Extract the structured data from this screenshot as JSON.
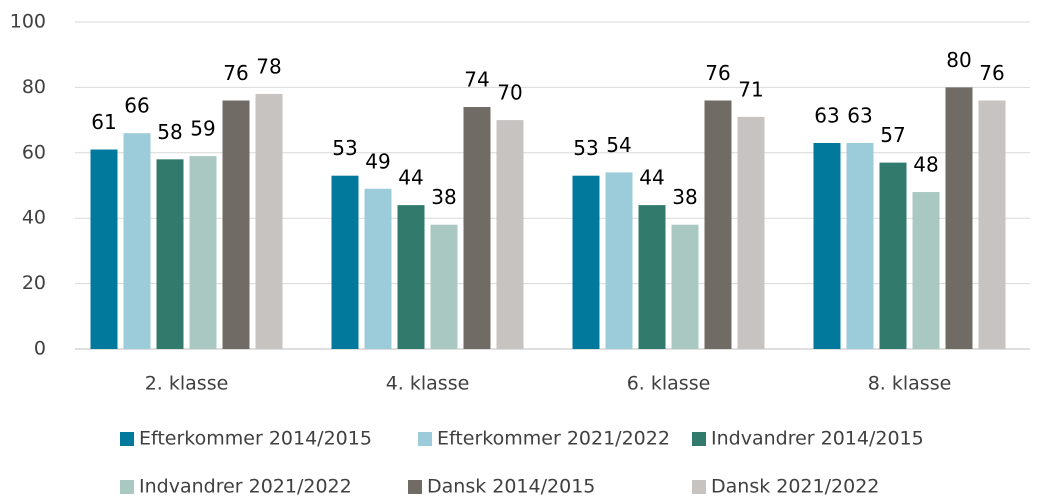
{
  "chart_data": {
    "type": "bar",
    "categories": [
      "2. klasse",
      "4. klasse",
      "6. klasse",
      "8. klasse"
    ],
    "series": [
      {
        "name": "Efterkommer 2014/2015",
        "color": "#00799c",
        "values": [
          61,
          53,
          53,
          63
        ]
      },
      {
        "name": "Efterkommer 2021/2022",
        "color": "#9ccbd9",
        "values": [
          66,
          49,
          54,
          63
        ]
      },
      {
        "name": "Indvandrer 2014/2015",
        "color": "#317a6c",
        "values": [
          58,
          44,
          44,
          57
        ]
      },
      {
        "name": "Indvandrer 2021/2022",
        "color": "#a9c8c2",
        "values": [
          59,
          38,
          38,
          48
        ]
      },
      {
        "name": "Dansk 2014/2015",
        "color": "#716b66",
        "values": [
          76,
          74,
          76,
          80
        ]
      },
      {
        "name": "Dansk 2021/2022",
        "color": "#c6c3c1",
        "values": [
          78,
          70,
          71,
          76
        ]
      }
    ],
    "ylim": [
      0,
      100
    ],
    "yticks": [
      0,
      20,
      40,
      60,
      80,
      100
    ],
    "grid": true,
    "legend": "bottom"
  }
}
